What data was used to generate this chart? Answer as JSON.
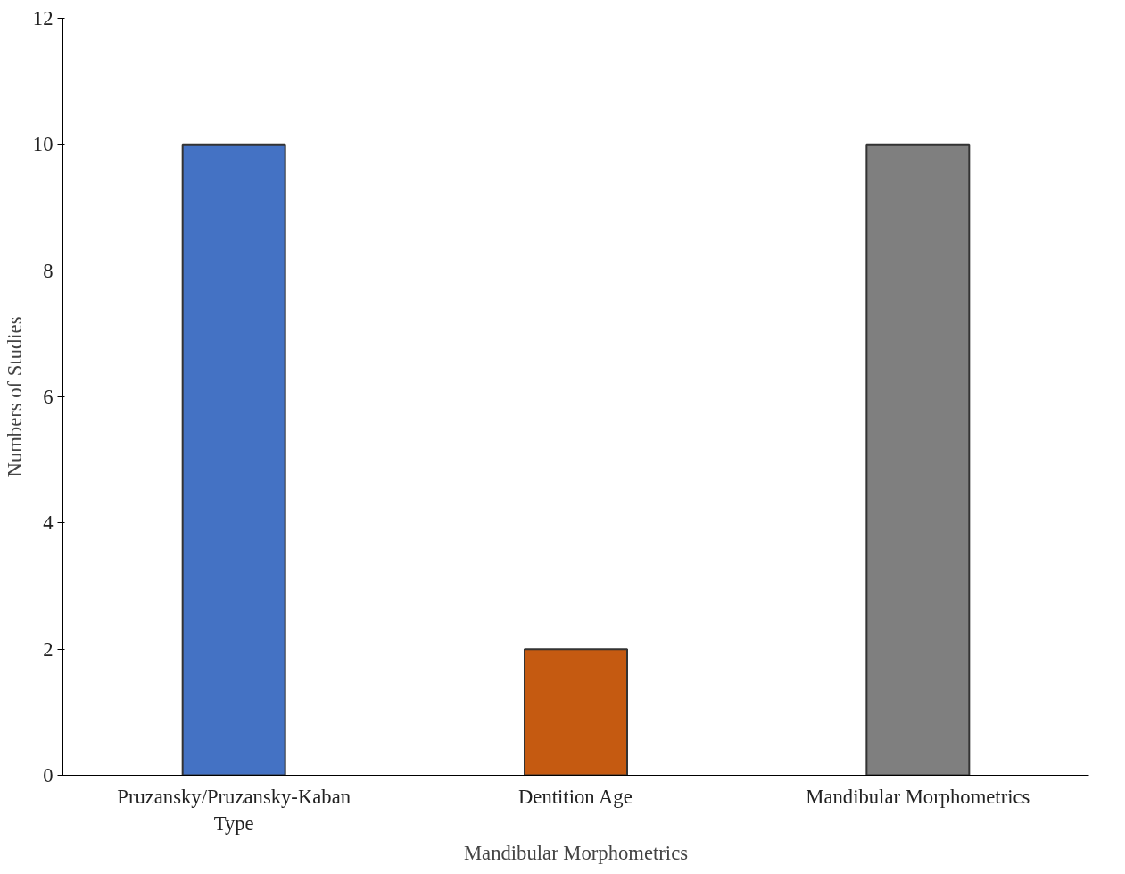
{
  "chart_data": {
    "type": "bar",
    "xlabel": "Mandibular Morphometrics",
    "ylabel": "Numbers of Studies",
    "categories": [
      "Pruzansky/Pruzansky-Kaban Type",
      "Dentition Age",
      "Mandibular Morphometrics"
    ],
    "values": [
      10,
      2,
      10
    ],
    "colors": [
      "#4472c4",
      "#c55a11",
      "#7f7f7f"
    ],
    "ylim": [
      0,
      12
    ],
    "yticks": [
      0,
      2,
      4,
      6,
      8,
      10,
      12
    ],
    "grid": false
  }
}
